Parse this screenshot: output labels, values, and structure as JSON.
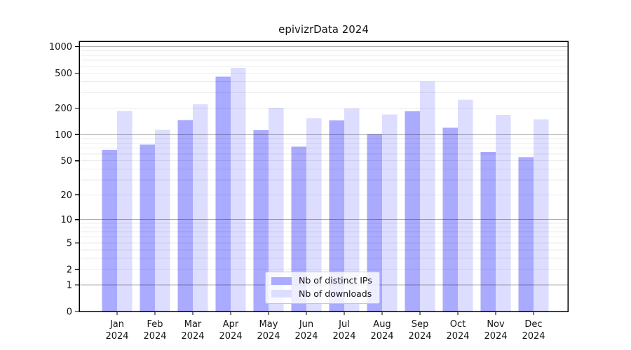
{
  "title": "epivizrData 2024",
  "legend": {
    "items": [
      {
        "label": "Nb of distinct IPs",
        "color": "#aaaaff"
      },
      {
        "label": "Nb of downloads",
        "color": "#ddddff"
      }
    ]
  },
  "chart_data": {
    "type": "bar",
    "title": "epivizrData 2024",
    "categories": [
      "Jan",
      "Feb",
      "Mar",
      "Apr",
      "May",
      "Jun",
      "Jul",
      "Aug",
      "Sep",
      "Oct",
      "Nov",
      "Dec"
    ],
    "category_year": "2024",
    "series": [
      {
        "name": "Nb of distinct IPs",
        "color": "#aaaaff",
        "values": [
          67,
          77,
          147,
          458,
          112,
          73,
          145,
          101,
          185,
          120,
          63,
          55
        ]
      },
      {
        "name": "Nb of downloads",
        "color": "#ddddff",
        "values": [
          186,
          113,
          221,
          572,
          203,
          153,
          199,
          169,
          400,
          250,
          168,
          149
        ]
      }
    ],
    "yscale": "log10(value+1)",
    "yticks": [
      0,
      1,
      2,
      5,
      10,
      20,
      50,
      100,
      200,
      500,
      1000
    ],
    "ylim": [
      0,
      1150
    ],
    "grid_major": [
      1,
      10,
      100,
      1000
    ],
    "grid_minor_decades": [
      1,
      10,
      100
    ],
    "xlabel": "",
    "ylabel": "",
    "legend_position": "lower center"
  }
}
